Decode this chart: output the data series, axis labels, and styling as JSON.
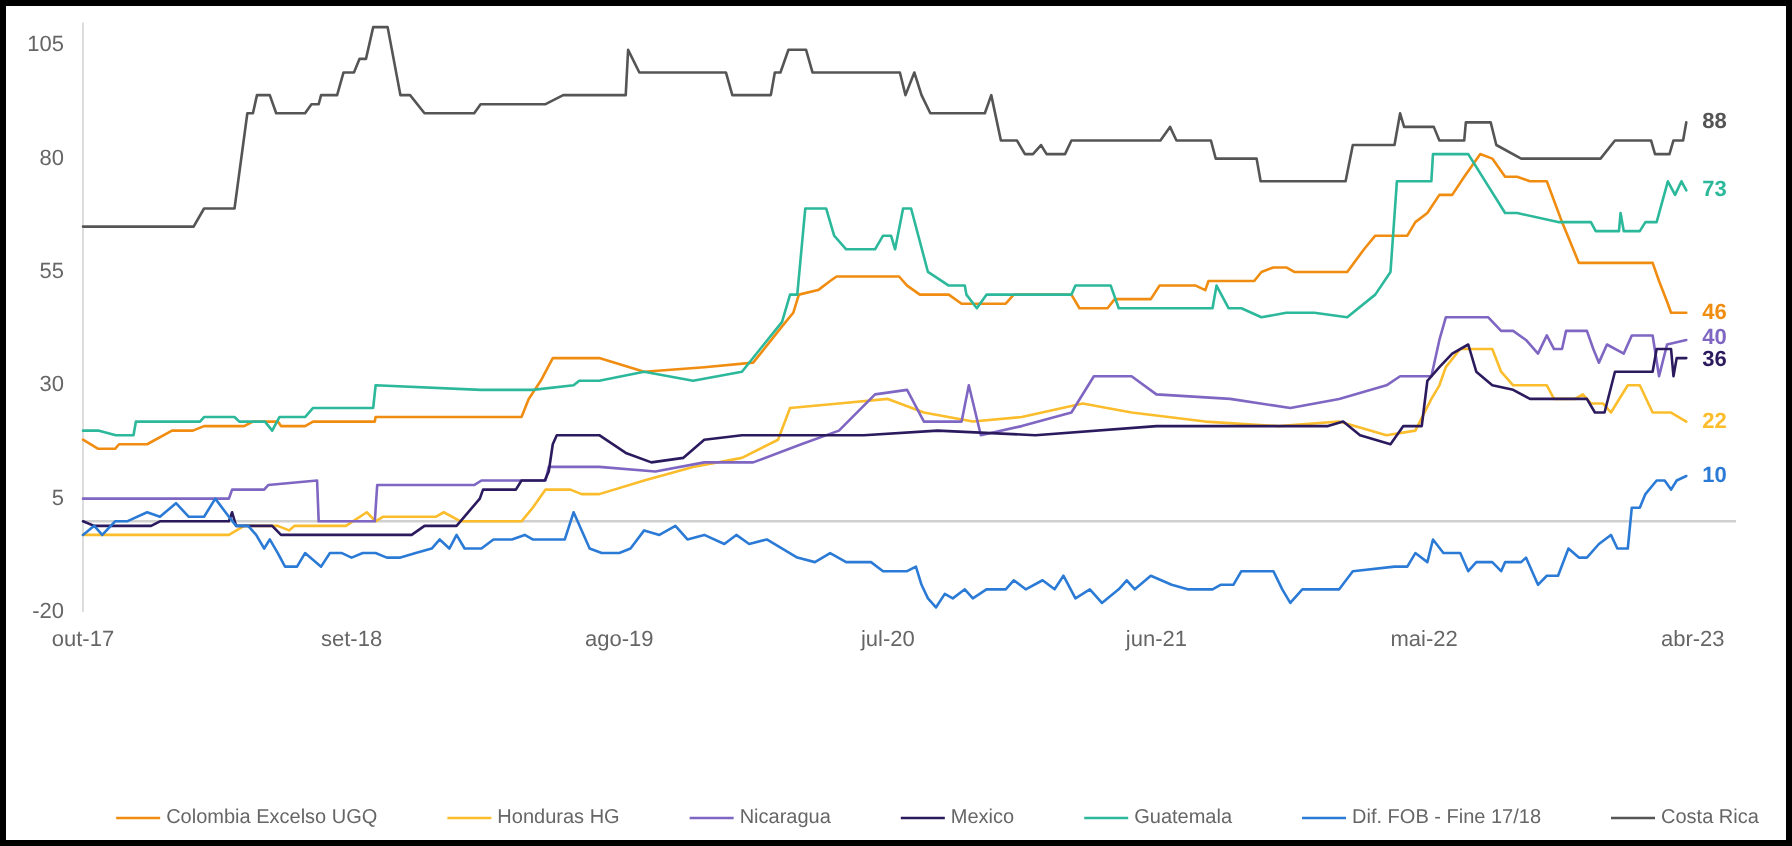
{
  "chart_data": {
    "type": "line",
    "xlim": [
      "2017-10-01",
      "2023-05-25"
    ],
    "xticks": [
      {
        "value": "2017-10-01",
        "label": "out-17"
      },
      {
        "value": "2018-09-01",
        "label": "set-18"
      },
      {
        "value": "2019-08-01",
        "label": "ago-19"
      },
      {
        "value": "2020-07-01",
        "label": "jul-20"
      },
      {
        "value": "2021-06-01",
        "label": "jun-21"
      },
      {
        "value": "2022-05-01",
        "label": "mai-22"
      },
      {
        "value": "2023-04-01",
        "label": "abr-23"
      }
    ],
    "ylim": [
      -20,
      110
    ],
    "yticks": [
      -20,
      5,
      30,
      55,
      80,
      105
    ],
    "legend": "bottom",
    "ref_lines": [
      {
        "axis": "y",
        "value": 0,
        "color": "#d0d0d0"
      }
    ],
    "series": [
      {
        "name": "Colombia Excelso UGQ",
        "color": "#f08c10",
        "x": [
          "2017-10-01",
          "2017-10-20",
          "2017-11-10",
          "2017-11-15",
          "2017-12-20",
          "2018-01-20",
          "2018-02-15",
          "2018-03-01",
          "2018-04-20",
          "2018-05-01",
          "2018-06-01",
          "2018-06-05",
          "2018-07-05",
          "2018-07-15",
          "2018-09-30",
          "2018-10-01",
          "2019-04-01",
          "2019-04-10",
          "2019-04-25",
          "2019-05-10",
          "2019-07-07",
          "2019-09-01",
          "2019-11-15",
          "2020-01-15",
          "2020-02-20",
          "2020-03-05",
          "2020-03-12",
          "2020-04-05",
          "2020-04-20",
          "2020-04-28",
          "2020-07-15",
          "2020-07-25",
          "2020-08-10",
          "2020-09-15",
          "2020-10-01",
          "2020-11-25",
          "2020-12-05",
          "2021-02-15",
          "2021-02-25",
          "2021-04-01",
          "2021-04-10",
          "2021-05-25",
          "2021-06-05",
          "2021-07-20",
          "2021-08-01",
          "2021-08-05",
          "2021-10-01",
          "2021-10-10",
          "2021-10-25",
          "2021-11-10",
          "2021-11-20",
          "2022-01-25",
          "2022-02-15",
          "2022-03-01",
          "2022-04-10",
          "2022-04-20",
          "2022-05-05",
          "2022-05-20",
          "2022-06-05",
          "2022-06-20",
          "2022-07-10",
          "2022-07-25",
          "2022-08-10",
          "2022-08-25",
          "2022-09-10",
          "2022-10-01",
          "2022-10-20",
          "2022-11-10",
          "2023-02-10",
          "2023-02-18",
          "2023-03-01",
          "2023-03-05",
          "2023-03-24"
        ],
        "values": [
          18,
          16,
          16,
          17,
          17,
          20,
          20,
          21,
          21,
          22,
          22,
          21,
          21,
          22,
          22,
          23,
          23,
          27,
          31,
          36,
          36,
          33,
          34,
          35,
          43,
          46,
          50,
          51,
          53,
          54,
          54,
          52,
          50,
          50,
          48,
          48,
          50,
          50,
          47,
          47,
          49,
          49,
          52,
          52,
          51,
          53,
          53,
          55,
          56,
          56,
          55,
          55,
          60,
          63,
          63,
          66,
          68,
          72,
          72,
          76,
          81,
          80,
          76,
          76,
          75,
          75,
          66,
          57,
          57,
          53,
          48,
          46,
          46
        ],
        "value_labels": [
          null,
          null,
          null,
          null,
          null,
          null,
          null,
          null,
          null,
          null,
          null,
          null,
          null,
          null,
          null,
          null,
          null,
          null,
          null,
          null,
          null,
          null,
          null,
          null,
          null,
          null,
          null,
          null,
          null,
          null,
          null,
          null,
          null,
          null,
          null,
          null,
          null,
          null,
          null,
          null,
          null,
          null,
          null,
          null,
          null,
          null,
          null,
          null,
          null,
          null,
          null,
          null,
          null,
          null,
          null,
          null,
          null,
          null,
          null,
          null,
          null,
          null,
          null,
          null,
          null,
          null,
          null,
          null,
          null,
          null,
          null,
          null,
          "46"
        ]
      },
      {
        "name": "Honduras HG",
        "color": "#fbbd2c",
        "x": [
          "2017-10-01",
          "2018-04-01",
          "2018-04-20",
          "2018-06-01",
          "2018-06-15",
          "2018-06-22",
          "2018-08-25",
          "2018-09-20",
          "2018-10-01",
          "2018-10-10",
          "2018-12-15",
          "2018-12-25",
          "2019-01-15",
          "2019-04-01",
          "2019-04-15",
          "2019-05-01",
          "2019-06-01",
          "2019-06-15",
          "2019-07-07",
          "2019-09-01",
          "2019-11-01",
          "2020-01-01",
          "2020-02-15",
          "2020-03-01",
          "2020-05-01",
          "2020-07-01",
          "2020-08-15",
          "2020-10-15",
          "2020-12-15",
          "2021-03-01",
          "2021-05-01",
          "2021-08-01",
          "2021-11-01",
          "2022-01-15",
          "2022-03-15",
          "2022-04-20",
          "2022-05-10",
          "2022-05-20",
          "2022-05-28",
          "2022-06-15",
          "2022-07-25",
          "2022-08-05",
          "2022-08-20",
          "2022-10-01",
          "2022-10-10",
          "2022-11-05",
          "2022-11-15",
          "2022-11-25",
          "2022-12-10",
          "2022-12-20",
          "2023-01-10",
          "2023-01-25",
          "2023-02-10",
          "2023-03-05",
          "2023-03-24"
        ],
        "values": [
          -3,
          -3,
          -1,
          -1,
          -2,
          -1,
          -1,
          2,
          0,
          1,
          1,
          2,
          0,
          0,
          3,
          7,
          7,
          6,
          6,
          9,
          12,
          14,
          18,
          25,
          26,
          27,
          24,
          22,
          23,
          26,
          24,
          22,
          21,
          22,
          19,
          20,
          27,
          30,
          34,
          38,
          38,
          33,
          30,
          30,
          27,
          27,
          28,
          26,
          26,
          24,
          30,
          30,
          24,
          24,
          22
        ],
        "value_labels": [
          null,
          null,
          null,
          null,
          null,
          null,
          null,
          null,
          null,
          null,
          null,
          null,
          null,
          null,
          null,
          null,
          null,
          null,
          null,
          null,
          null,
          null,
          null,
          null,
          null,
          null,
          null,
          null,
          null,
          null,
          null,
          null,
          null,
          null,
          null,
          null,
          null,
          null,
          null,
          null,
          null,
          null,
          null,
          null,
          null,
          null,
          null,
          null,
          null,
          null,
          null,
          null,
          null,
          null,
          "22"
        ]
      },
      {
        "name": "Nicaragua",
        "color": "#7e66c2",
        "x": [
          "2017-10-01",
          "2018-04-01",
          "2018-04-05",
          "2018-05-15",
          "2018-05-20",
          "2018-07-20",
          "2018-07-22",
          "2018-09-30",
          "2018-10-03",
          "2019-02-01",
          "2019-02-10",
          "2019-05-01",
          "2019-05-05",
          "2019-07-07",
          "2019-09-15",
          "2019-11-15",
          "2020-01-15",
          "2020-03-15",
          "2020-05-01",
          "2020-06-15",
          "2020-07-25",
          "2020-08-15",
          "2020-10-01",
          "2020-10-10",
          "2020-10-25",
          "2020-12-15",
          "2021-02-15",
          "2021-03-15",
          "2021-05-01",
          "2021-06-01",
          "2021-09-01",
          "2021-11-15",
          "2022-01-15",
          "2022-03-15",
          "2022-04-01",
          "2022-05-10",
          "2022-05-20",
          "2022-05-28",
          "2022-07-20",
          "2022-08-05",
          "2022-08-20",
          "2022-09-05",
          "2022-09-20",
          "2022-10-01",
          "2022-10-10",
          "2022-10-20",
          "2022-10-25",
          "2022-11-20",
          "2022-11-28",
          "2022-12-05",
          "2022-12-15",
          "2023-01-05",
          "2023-01-15",
          "2023-02-10",
          "2023-02-18",
          "2023-02-28",
          "2023-03-24"
        ],
        "values": [
          5,
          5,
          7,
          7,
          8,
          9,
          0,
          0,
          8,
          8,
          9,
          9,
          12,
          12,
          11,
          13,
          13,
          17,
          20,
          28,
          29,
          22,
          22,
          30,
          19,
          21,
          24,
          32,
          32,
          28,
          27,
          25,
          27,
          30,
          32,
          32,
          40,
          45,
          45,
          42,
          42,
          40,
          37,
          41,
          38,
          38,
          42,
          42,
          38,
          35,
          39,
          37,
          41,
          41,
          32,
          39,
          40
        ],
        "value_labels": [
          null,
          null,
          null,
          null,
          null,
          null,
          null,
          null,
          null,
          null,
          null,
          null,
          null,
          null,
          null,
          null,
          null,
          null,
          null,
          null,
          null,
          null,
          null,
          null,
          null,
          null,
          null,
          null,
          null,
          null,
          null,
          null,
          null,
          null,
          null,
          null,
          null,
          null,
          null,
          null,
          null,
          null,
          null,
          null,
          null,
          null,
          null,
          null,
          null,
          null,
          null,
          null,
          null,
          null,
          null,
          null,
          "40"
        ]
      },
      {
        "name": "Mexico",
        "color": "#2c1a5e",
        "x": [
          "2017-10-01",
          "2017-10-15",
          "2017-12-25",
          "2018-01-05",
          "2018-04-01",
          "2018-04-05",
          "2018-04-10",
          "2018-05-25",
          "2018-06-05",
          "2018-11-15",
          "2018-12-01",
          "2019-01-10",
          "2019-02-08",
          "2019-02-12",
          "2019-03-25",
          "2019-04-01",
          "2019-04-30",
          "2019-05-05",
          "2019-05-10",
          "2019-05-15",
          "2019-07-07",
          "2019-08-10",
          "2019-09-10",
          "2019-10-20",
          "2019-11-15",
          "2020-01-01",
          "2020-06-01",
          "2020-09-01",
          "2021-01-01",
          "2021-06-01",
          "2021-10-01",
          "2022-01-01",
          "2022-01-20",
          "2022-02-10",
          "2022-03-20",
          "2022-04-05",
          "2022-04-28",
          "2022-05-05",
          "2022-05-20",
          "2022-06-05",
          "2022-06-25",
          "2022-07-05",
          "2022-07-25",
          "2022-08-20",
          "2022-09-10",
          "2022-11-20",
          "2022-11-30",
          "2022-12-12",
          "2022-12-25",
          "2023-02-10",
          "2023-02-15",
          "2023-03-05",
          "2023-03-08",
          "2023-03-12",
          "2023-03-24"
        ],
        "values": [
          0,
          -1,
          -1,
          0,
          0,
          2,
          -1,
          -1,
          -3,
          -3,
          -1,
          -1,
          5,
          7,
          7,
          9,
          9,
          11,
          17,
          19,
          19,
          15,
          13,
          14,
          18,
          19,
          19,
          20,
          19,
          21,
          21,
          21,
          22,
          19,
          17,
          21,
          21,
          31,
          34,
          37,
          39,
          33,
          30,
          29,
          27,
          27,
          24,
          24,
          33,
          33,
          38,
          38,
          32,
          36,
          36
        ],
        "value_labels": [
          null,
          null,
          null,
          null,
          null,
          null,
          null,
          null,
          null,
          null,
          null,
          null,
          null,
          null,
          null,
          null,
          null,
          null,
          null,
          null,
          null,
          null,
          null,
          null,
          null,
          null,
          null,
          null,
          null,
          null,
          null,
          null,
          null,
          null,
          null,
          null,
          null,
          null,
          null,
          null,
          null,
          null,
          null,
          null,
          null,
          null,
          null,
          null,
          null,
          null,
          null,
          null,
          null,
          null,
          "36"
        ]
      },
      {
        "name": "Guatemala",
        "color": "#2cb89a",
        "x": [
          "2017-10-01",
          "2017-10-21",
          "2017-11-11",
          "2017-12-03",
          "2017-12-06",
          "2018-02-24",
          "2018-03-01",
          "2018-04-08",
          "2018-04-14",
          "2018-05-16",
          "2018-05-25",
          "2018-06-03",
          "2018-07-05",
          "2018-07-15",
          "2018-09-28",
          "2018-10-01",
          "2019-02-09",
          "2019-04-15",
          "2019-06-05",
          "2019-06-12",
          "2019-07-07",
          "2019-09-01",
          "2019-11-01",
          "2020-01-01",
          "2020-02-20",
          "2020-03-01",
          "2020-03-10",
          "2020-03-20",
          "2020-04-15",
          "2020-04-25",
          "2020-05-10",
          "2020-06-15",
          "2020-06-25",
          "2020-07-05",
          "2020-07-10",
          "2020-07-20",
          "2020-07-30",
          "2020-08-20",
          "2020-09-15",
          "2020-10-05",
          "2020-10-07",
          "2020-10-20",
          "2020-11-01",
          "2021-02-15",
          "2021-02-20",
          "2021-04-05",
          "2021-04-15",
          "2021-08-10",
          "2021-08-15",
          "2021-08-30",
          "2021-09-15",
          "2021-10-10",
          "2021-11-10",
          "2021-12-15",
          "2022-01-25",
          "2022-03-01",
          "2022-03-20",
          "2022-03-28",
          "2022-05-10",
          "2022-05-12",
          "2022-06-25",
          "2022-08-10",
          "2022-08-25",
          "2022-10-15",
          "2022-11-25",
          "2022-12-01",
          "2022-12-30",
          "2023-01-01",
          "2023-01-05",
          "2023-01-25",
          "2023-02-01",
          "2023-02-15",
          "2023-03-01",
          "2023-03-10",
          "2023-03-18",
          "2023-03-24"
        ],
        "values": [
          20,
          20,
          19,
          19,
          22,
          22,
          23,
          23,
          22,
          22,
          20,
          23,
          23,
          25,
          25,
          30,
          29,
          29,
          30,
          31,
          31,
          33,
          31,
          33,
          44,
          50,
          50,
          69,
          69,
          63,
          60,
          60,
          63,
          63,
          60,
          69,
          69,
          55,
          52,
          52,
          50,
          47,
          50,
          50,
          52,
          52,
          47,
          47,
          52,
          47,
          47,
          45,
          46,
          46,
          45,
          50,
          55,
          75,
          75,
          81,
          81,
          68,
          68,
          66,
          66,
          64,
          64,
          68,
          64,
          64,
          66,
          66,
          75,
          72,
          75,
          73
        ],
        "value_labels": [
          null,
          null,
          null,
          null,
          null,
          null,
          null,
          null,
          null,
          null,
          null,
          null,
          null,
          null,
          null,
          null,
          null,
          null,
          null,
          null,
          null,
          null,
          null,
          null,
          null,
          null,
          null,
          null,
          null,
          null,
          null,
          null,
          null,
          null,
          null,
          null,
          null,
          null,
          null,
          null,
          null,
          null,
          null,
          null,
          null,
          null,
          null,
          null,
          null,
          null,
          null,
          null,
          null,
          null,
          null,
          null,
          null,
          null,
          null,
          null,
          null,
          null,
          null,
          null,
          null,
          null,
          null,
          null,
          null,
          null,
          null,
          null,
          null,
          null,
          null,
          "73"
        ]
      },
      {
        "name": "Dif. FOB - Fine 17/18",
        "color": "#2b7bd6",
        "x": [
          "2017-10-01",
          "2017-10-15",
          "2017-10-25",
          "2017-11-10",
          "2017-11-25",
          "2017-12-20",
          "2018-01-05",
          "2018-01-25",
          "2018-02-10",
          "2018-03-01",
          "2018-03-15",
          "2018-04-01",
          "2018-04-10",
          "2018-04-25",
          "2018-05-05",
          "2018-05-15",
          "2018-05-22",
          "2018-06-01",
          "2018-06-10",
          "2018-06-25",
          "2018-07-05",
          "2018-07-25",
          "2018-08-05",
          "2018-08-20",
          "2018-09-01",
          "2018-09-15",
          "2018-10-01",
          "2018-10-15",
          "2018-11-01",
          "2018-11-20",
          "2018-12-10",
          "2018-12-20",
          "2019-01-01",
          "2019-01-10",
          "2019-01-20",
          "2019-02-10",
          "2019-02-25",
          "2019-03-20",
          "2019-04-05",
          "2019-04-15",
          "2019-05-25",
          "2019-06-05",
          "2019-06-25",
          "2019-07-10",
          "2019-08-01",
          "2019-08-15",
          "2019-09-01",
          "2019-09-20",
          "2019-10-10",
          "2019-10-25",
          "2019-11-15",
          "2019-12-10",
          "2019-12-25",
          "2020-01-10",
          "2020-02-01",
          "2020-03-10",
          "2020-04-01",
          "2020-04-20",
          "2020-05-10",
          "2020-06-10",
          "2020-06-25",
          "2020-07-25",
          "2020-08-05",
          "2020-08-12",
          "2020-08-20",
          "2020-08-30",
          "2020-09-10",
          "2020-09-20",
          "2020-10-05",
          "2020-10-15",
          "2020-11-01",
          "2020-11-25",
          "2020-12-05",
          "2020-12-20",
          "2021-01-10",
          "2021-01-25",
          "2021-02-05",
          "2021-02-20",
          "2021-03-10",
          "2021-03-25",
          "2021-04-15",
          "2021-04-25",
          "2021-05-05",
          "2021-05-25",
          "2021-06-20",
          "2021-07-10",
          "2021-08-10",
          "2021-08-20",
          "2021-09-05",
          "2021-09-15",
          "2021-10-25",
          "2021-11-05",
          "2021-11-15",
          "2021-11-30",
          "2022-01-15",
          "2022-02-01",
          "2022-03-25",
          "2022-04-10",
          "2022-04-20",
          "2022-05-05",
          "2022-05-12",
          "2022-05-25",
          "2022-06-15",
          "2022-06-25",
          "2022-07-05",
          "2022-07-25",
          "2022-08-05",
          "2022-08-10",
          "2022-08-30",
          "2022-09-05",
          "2022-09-20",
          "2022-10-01",
          "2022-10-15",
          "2022-10-28",
          "2022-11-10",
          "2022-11-20",
          "2022-12-05",
          "2022-12-20",
          "2022-12-28",
          "2023-01-10",
          "2023-01-15",
          "2023-01-25",
          "2023-02-01",
          "2023-02-15",
          "2023-02-25",
          "2023-03-05",
          "2023-03-12",
          "2023-03-24"
        ],
        "values": [
          -3,
          -1,
          -3,
          0,
          0,
          2,
          1,
          4,
          1,
          1,
          5,
          1,
          -1,
          -1,
          -3,
          -6,
          -4,
          -7,
          -10,
          -10,
          -7,
          -10,
          -7,
          -7,
          -8,
          -7,
          -7,
          -8,
          -8,
          -7,
          -6,
          -4,
          -6,
          -3,
          -6,
          -6,
          -4,
          -4,
          -3,
          -4,
          -4,
          2,
          -6,
          -7,
          -7,
          -6,
          -2,
          -3,
          -1,
          -4,
          -3,
          -5,
          -3,
          -5,
          -4,
          -8,
          -9,
          -7,
          -9,
          -9,
          -11,
          -11,
          -10,
          -14,
          -17,
          -19,
          -16,
          -17,
          -15,
          -17,
          -15,
          -15,
          -13,
          -15,
          -13,
          -15,
          -12,
          -17,
          -15,
          -18,
          -15,
          -13,
          -15,
          -12,
          -14,
          -15,
          -15,
          -14,
          -14,
          -11,
          -11,
          -15,
          -18,
          -15,
          -15,
          -11,
          -10,
          -10,
          -7,
          -9,
          -4,
          -7,
          -7,
          -11,
          -9,
          -9,
          -11,
          -9,
          -9,
          -8,
          -14,
          -12,
          -12,
          -6,
          -8,
          -8,
          -5,
          -3,
          -6,
          -6,
          3,
          3,
          6,
          9,
          9,
          7,
          9,
          10
        ],
        "value_labels": [
          null,
          null,
          null,
          null,
          null,
          null,
          null,
          null,
          null,
          null,
          null,
          null,
          null,
          null,
          null,
          null,
          null,
          null,
          null,
          null,
          null,
          null,
          null,
          null,
          null,
          null,
          null,
          null,
          null,
          null,
          null,
          null,
          null,
          null,
          null,
          null,
          null,
          null,
          null,
          null,
          null,
          null,
          null,
          null,
          null,
          null,
          null,
          null,
          null,
          null,
          null,
          null,
          null,
          null,
          null,
          null,
          null,
          null,
          null,
          null,
          null,
          null,
          null,
          null,
          null,
          null,
          null,
          null,
          null,
          null,
          null,
          null,
          null,
          null,
          null,
          null,
          null,
          null,
          null,
          null,
          null,
          null,
          null,
          null,
          null,
          null,
          null,
          null,
          null,
          null,
          null,
          null,
          null,
          null,
          null,
          null,
          null,
          null,
          null,
          null,
          null,
          null,
          null,
          null,
          null,
          null,
          null,
          null,
          null,
          null,
          null,
          null,
          null,
          null,
          null,
          null,
          null,
          null,
          null,
          null,
          null,
          null,
          null,
          null,
          null,
          null,
          null,
          "10"
        ]
      },
      {
        "name": "Costa Rica",
        "color": "#555555",
        "x": [
          "2017-10-01",
          "2018-02-16",
          "2018-03-01",
          "2018-04-08",
          "2018-04-24",
          "2018-05-01",
          "2018-05-06",
          "2018-05-22",
          "2018-05-30",
          "2018-07-05",
          "2018-07-13",
          "2018-07-22",
          "2018-07-25",
          "2018-08-14",
          "2018-08-22",
          "2018-09-04",
          "2018-09-11",
          "2018-09-19",
          "2018-09-28",
          "2018-10-16",
          "2018-11-01",
          "2018-11-13",
          "2018-12-01",
          "2019-02-01",
          "2019-02-09",
          "2019-05-01",
          "2019-05-23",
          "2019-08-09",
          "2019-08-12",
          "2019-08-26",
          "2019-12-12",
          "2019-12-20",
          "2020-02-06",
          "2020-02-11",
          "2020-02-18",
          "2020-02-28",
          "2020-03-21",
          "2020-03-29",
          "2020-07-16",
          "2020-07-23",
          "2020-08-03",
          "2020-08-12",
          "2020-08-23",
          "2020-10-30",
          "2020-11-07",
          "2020-11-19",
          "2020-12-09",
          "2020-12-19",
          "2020-12-29",
          "2021-01-08",
          "2021-01-15",
          "2021-02-07",
          "2021-02-15",
          "2021-06-06",
          "2021-06-18",
          "2021-06-26",
          "2021-08-08",
          "2021-08-14",
          "2021-10-04",
          "2021-10-09",
          "2022-01-23",
          "2022-02-01",
          "2022-03-25",
          "2022-04-01",
          "2022-04-06",
          "2022-05-13",
          "2022-05-20",
          "2022-06-20",
          "2022-06-22",
          "2022-07-23",
          "2022-07-30",
          "2022-08-30",
          "2022-12-07",
          "2022-12-25",
          "2023-02-08",
          "2023-02-13",
          "2023-03-03",
          "2023-03-08",
          "2023-03-20",
          "2023-03-24"
        ],
        "values": [
          65,
          65,
          69,
          69,
          90,
          90,
          94,
          94,
          90,
          90,
          92,
          92,
          94,
          94,
          99,
          99,
          102,
          102,
          109,
          109,
          94,
          94,
          90,
          90,
          92,
          92,
          94,
          94,
          104,
          99,
          99,
          94,
          94,
          99,
          99,
          104,
          104,
          99,
          99,
          94,
          99,
          94,
          90,
          90,
          94,
          84,
          84,
          81,
          81,
          83,
          81,
          81,
          84,
          84,
          87,
          84,
          84,
          80,
          80,
          75,
          75,
          83,
          83,
          90,
          87,
          87,
          84,
          84,
          88,
          88,
          83,
          80,
          80,
          84,
          84,
          81,
          81,
          84,
          84,
          88
        ],
        "value_labels": [
          null,
          null,
          null,
          null,
          null,
          null,
          null,
          null,
          null,
          null,
          null,
          null,
          null,
          null,
          null,
          null,
          null,
          null,
          null,
          null,
          null,
          null,
          null,
          null,
          null,
          null,
          null,
          null,
          null,
          null,
          null,
          null,
          null,
          null,
          null,
          null,
          null,
          null,
          null,
          null,
          null,
          null,
          null,
          null,
          null,
          null,
          null,
          null,
          null,
          null,
          null,
          null,
          null,
          null,
          null,
          null,
          null,
          null,
          null,
          null,
          null,
          null,
          null,
          null,
          null,
          null,
          null,
          null,
          null,
          null,
          null,
          null,
          null,
          null,
          null,
          null,
          null,
          null,
          null,
          "88"
        ]
      }
    ]
  }
}
